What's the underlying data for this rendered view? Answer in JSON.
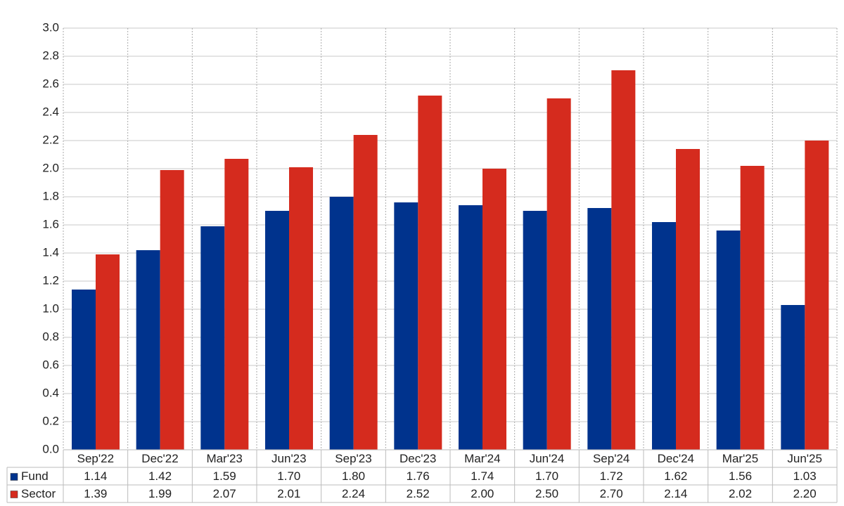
{
  "chart_data": {
    "type": "bar",
    "categories": [
      "Sep'22",
      "Dec'22",
      "Mar'23",
      "Jun'23",
      "Sep'23",
      "Dec'23",
      "Mar'24",
      "Jun'24",
      "Sep'24",
      "Dec'24",
      "Mar'25",
      "Jun'25"
    ],
    "series": [
      {
        "name": "Fund",
        "color": "#00338d",
        "values": [
          1.14,
          1.42,
          1.59,
          1.7,
          1.8,
          1.76,
          1.74,
          1.7,
          1.72,
          1.62,
          1.56,
          1.03
        ],
        "value_labels": [
          "1.14",
          "1.42",
          "1.59",
          "1.70",
          "1.80",
          "1.76",
          "1.74",
          "1.70",
          "1.72",
          "1.62",
          "1.56",
          "1.03"
        ]
      },
      {
        "name": "Sector",
        "color": "#d52b1e",
        "values": [
          1.39,
          1.99,
          2.07,
          2.01,
          2.24,
          2.52,
          2.0,
          2.5,
          2.7,
          2.14,
          2.02,
          2.2
        ],
        "value_labels": [
          "1.39",
          "1.99",
          "2.07",
          "2.01",
          "2.24",
          "2.52",
          "2.00",
          "2.50",
          "2.70",
          "2.14",
          "2.02",
          "2.20"
        ]
      }
    ],
    "ylim": [
      0,
      3
    ],
    "yticks": [
      {
        "value": 0,
        "label": "0.0"
      },
      0.2,
      0.4,
      0.6,
      0.8,
      {
        "value": 1,
        "label": "1.0"
      },
      1.2,
      1.4,
      1.6,
      1.8,
      {
        "value": 2,
        "label": "2.0"
      },
      2.2,
      2.4,
      2.6,
      2.8,
      {
        "value": 3,
        "label": "3.0"
      }
    ],
    "grid": true,
    "legend": "table"
  }
}
